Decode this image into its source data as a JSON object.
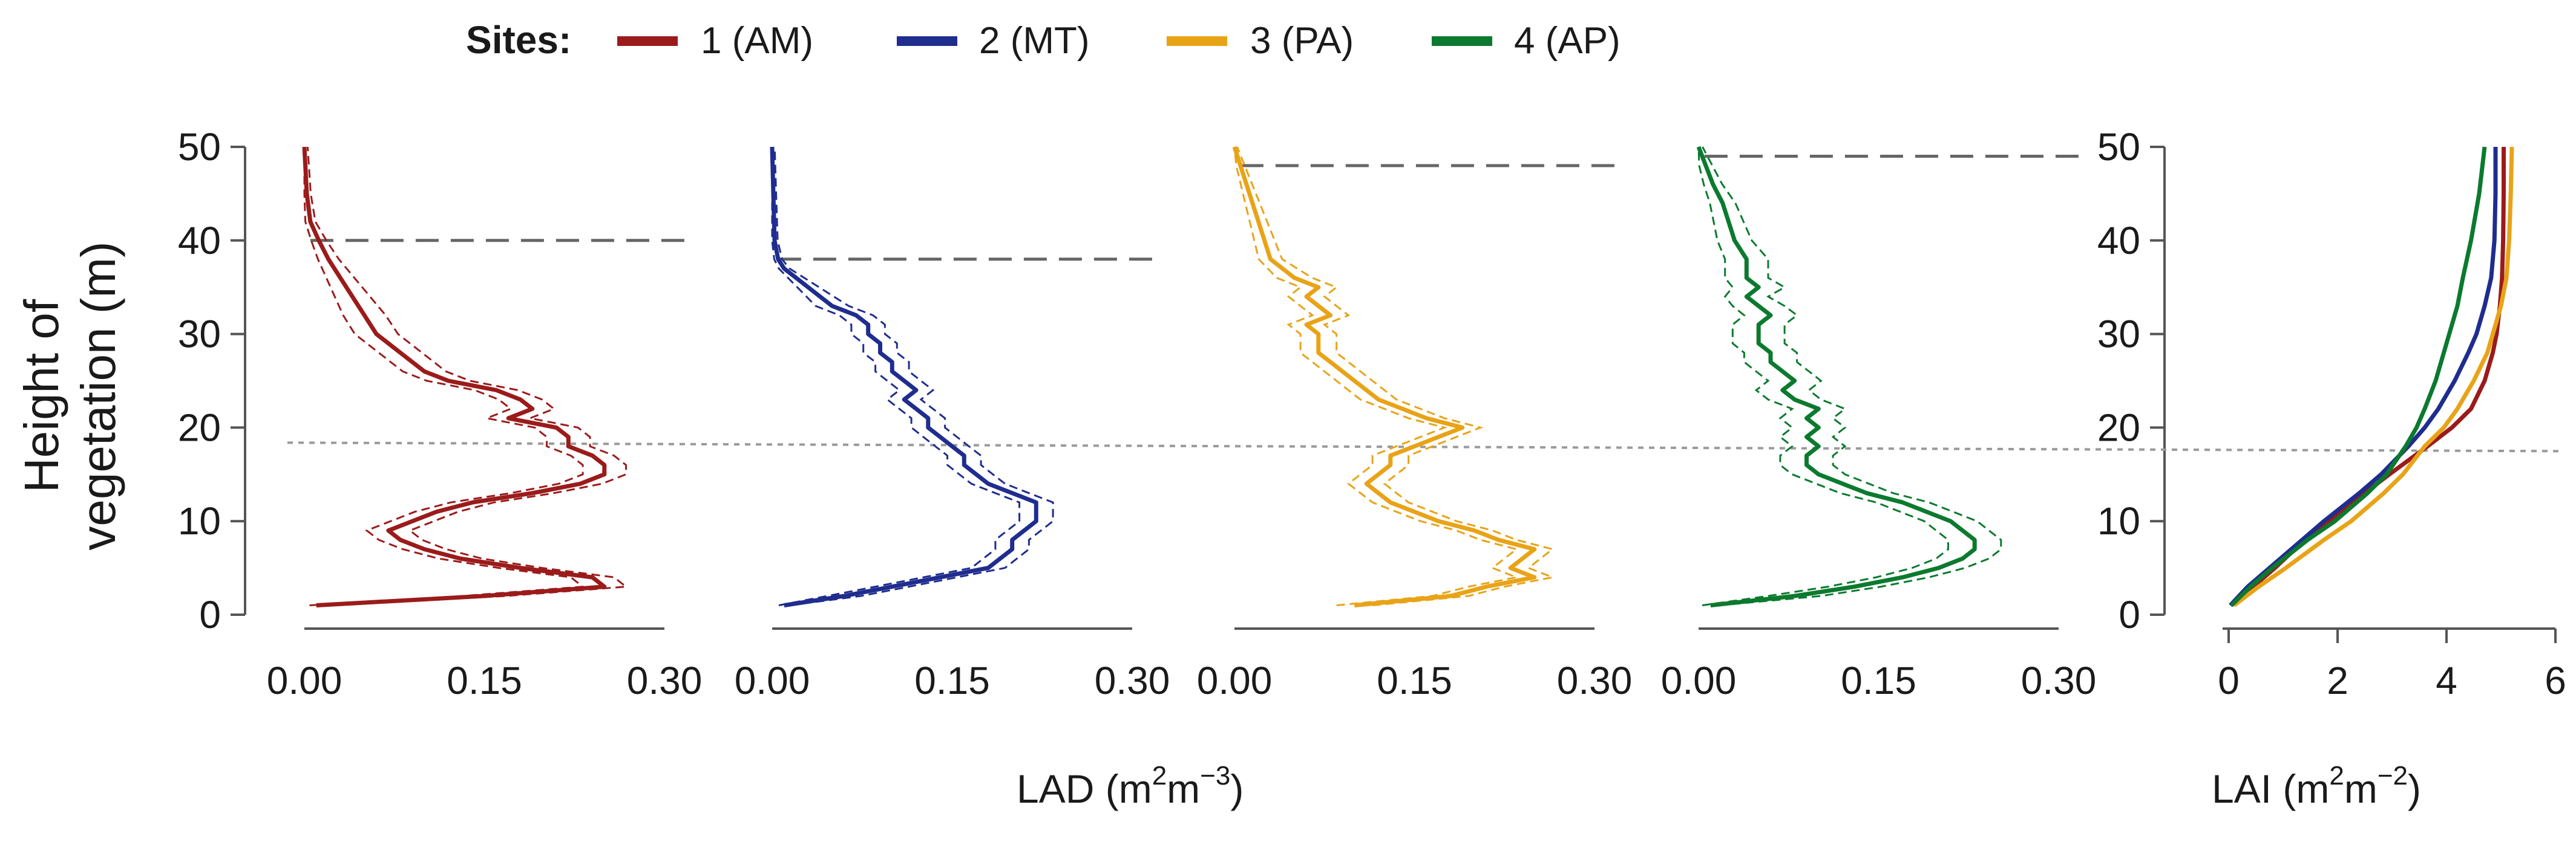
{
  "chart_data": {
    "type": "line",
    "legend": {
      "title": "Sites:",
      "placement": "top-left",
      "entries": [
        {
          "label": "1 (AM)",
          "color": "#9b1b1b"
        },
        {
          "label": "2 (MT)",
          "color": "#1f2d8f"
        },
        {
          "label": "3 (PA)",
          "color": "#e8a317"
        },
        {
          "label": "4 (AP)",
          "color": "#0b7a2e"
        }
      ]
    },
    "ylabel_line1": "Height of",
    "ylabel_line2": "vegetation (m)",
    "y_ticks": [
      "0",
      "10",
      "20",
      "30",
      "40",
      "50"
    ],
    "ylim": [
      0,
      50
    ],
    "lad_xlabel": {
      "base": "LAD (m",
      "sup1": "2",
      "mid": "m",
      "sup2": "−3",
      "end": ")"
    },
    "lai_xlabel": {
      "base": "LAI (m",
      "sup1": "2",
      "mid": "m",
      "sup2": "−2",
      "end": ")"
    },
    "lad_x_ticks": [
      "0.00",
      "0.15",
      "0.30"
    ],
    "lad_xlim": [
      0,
      0.3
    ],
    "lai_x_ticks": [
      "0",
      "2",
      "4",
      "6"
    ],
    "lai_xlim": [
      0,
      6
    ],
    "reference_height_dotted": 18,
    "lad_panels": [
      {
        "site": "1 (AM)",
        "color": "#9b1b1b",
        "canopy_height": 40,
        "ci_spread": 0.018,
        "h": [
          1,
          2,
          3,
          4,
          5,
          6,
          7,
          8,
          9,
          10,
          11,
          12,
          13,
          14,
          15,
          16,
          17,
          18,
          19,
          20,
          21,
          22,
          23,
          24,
          25,
          26,
          28,
          30,
          32,
          34,
          36,
          38,
          40,
          42,
          45,
          50
        ],
        "lad": [
          0.01,
          0.15,
          0.25,
          0.24,
          0.18,
          0.13,
          0.1,
          0.08,
          0.07,
          0.09,
          0.11,
          0.14,
          0.19,
          0.23,
          0.25,
          0.25,
          0.24,
          0.22,
          0.22,
          0.21,
          0.17,
          0.19,
          0.18,
          0.16,
          0.12,
          0.1,
          0.08,
          0.06,
          0.05,
          0.04,
          0.03,
          0.02,
          0.012,
          0.005,
          0.002,
          0.0
        ]
      },
      {
        "site": "2 (MT)",
        "color": "#1f2d8f",
        "canopy_height": 38,
        "ci_spread": 0.014,
        "h": [
          1,
          2,
          3,
          4,
          5,
          6,
          7,
          8,
          9,
          10,
          11,
          12,
          13,
          14,
          15,
          16,
          17,
          18,
          19,
          20,
          21,
          22,
          23,
          24,
          25,
          26,
          27,
          28,
          29,
          30,
          31,
          32,
          33,
          34,
          35,
          36,
          37,
          38,
          40,
          45,
          50
        ],
        "lad": [
          0.01,
          0.06,
          0.1,
          0.14,
          0.18,
          0.19,
          0.2,
          0.2,
          0.21,
          0.22,
          0.22,
          0.22,
          0.2,
          0.18,
          0.17,
          0.16,
          0.16,
          0.15,
          0.14,
          0.13,
          0.13,
          0.12,
          0.11,
          0.12,
          0.11,
          0.1,
          0.1,
          0.09,
          0.09,
          0.08,
          0.08,
          0.07,
          0.05,
          0.04,
          0.03,
          0.02,
          0.01,
          0.005,
          0.002,
          0.001,
          0.0
        ]
      },
      {
        "site": "3 (PA)",
        "color": "#e8a317",
        "canopy_height": 48,
        "ci_spread": 0.015,
        "h": [
          1,
          2,
          3,
          4,
          5,
          6,
          7,
          8,
          9,
          10,
          11,
          12,
          13,
          14,
          15,
          16,
          17,
          18,
          19,
          20,
          21,
          22,
          23,
          24,
          25,
          26,
          27,
          28,
          29,
          30,
          31,
          32,
          33,
          34,
          35,
          36,
          38,
          40,
          42,
          44,
          46,
          48,
          50
        ],
        "lad": [
          0.1,
          0.18,
          0.21,
          0.25,
          0.23,
          0.24,
          0.25,
          0.22,
          0.2,
          0.17,
          0.15,
          0.13,
          0.12,
          0.11,
          0.12,
          0.13,
          0.13,
          0.15,
          0.17,
          0.19,
          0.16,
          0.14,
          0.12,
          0.11,
          0.1,
          0.09,
          0.08,
          0.07,
          0.07,
          0.07,
          0.06,
          0.08,
          0.07,
          0.06,
          0.07,
          0.05,
          0.03,
          0.025,
          0.02,
          0.015,
          0.01,
          0.005,
          0.0
        ]
      },
      {
        "site": "4 (AP)",
        "color": "#0b7a2e",
        "canopy_height": 49,
        "ci_spread": 0.022,
        "h": [
          1,
          2,
          3,
          4,
          5,
          6,
          7,
          8,
          9,
          10,
          11,
          12,
          13,
          14,
          15,
          16,
          17,
          18,
          19,
          20,
          21,
          22,
          23,
          24,
          25,
          26,
          27,
          28,
          29,
          30,
          31,
          32,
          33,
          34,
          35,
          36,
          38,
          40,
          42,
          44,
          46,
          48,
          50
        ],
        "lad": [
          0.01,
          0.08,
          0.13,
          0.17,
          0.2,
          0.22,
          0.23,
          0.23,
          0.22,
          0.21,
          0.19,
          0.17,
          0.14,
          0.12,
          0.1,
          0.09,
          0.09,
          0.1,
          0.09,
          0.1,
          0.09,
          0.1,
          0.08,
          0.07,
          0.08,
          0.07,
          0.06,
          0.06,
          0.05,
          0.05,
          0.05,
          0.06,
          0.05,
          0.04,
          0.05,
          0.04,
          0.04,
          0.03,
          0.025,
          0.02,
          0.012,
          0.006,
          0.0
        ]
      }
    ],
    "lai_panel": {
      "series": [
        {
          "site": "1 (AM)",
          "color": "#9b1b1b",
          "h": [
            1,
            3,
            5,
            8,
            10,
            13,
            15,
            18,
            20,
            22,
            25,
            28,
            30,
            33,
            36,
            40,
            45,
            50
          ],
          "lai": [
            0.05,
            0.45,
            0.85,
            1.4,
            1.85,
            2.5,
            2.95,
            3.65,
            4.1,
            4.45,
            4.7,
            4.85,
            4.92,
            4.98,
            5.02,
            5.04,
            5.05,
            5.05
          ]
        },
        {
          "site": "2 (MT)",
          "color": "#1f2d8f",
          "h": [
            1,
            3,
            5,
            8,
            10,
            13,
            15,
            18,
            20,
            22,
            25,
            28,
            30,
            33,
            36,
            40,
            45,
            50
          ],
          "lai": [
            0.03,
            0.35,
            0.75,
            1.35,
            1.75,
            2.4,
            2.8,
            3.3,
            3.6,
            3.85,
            4.15,
            4.4,
            4.55,
            4.7,
            4.82,
            4.88,
            4.9,
            4.9
          ]
        },
        {
          "site": "3 (PA)",
          "color": "#e8a317",
          "h": [
            1,
            3,
            5,
            8,
            10,
            13,
            15,
            18,
            20,
            22,
            25,
            28,
            30,
            33,
            36,
            40,
            45,
            50
          ],
          "lai": [
            0.1,
            0.55,
            1.05,
            1.75,
            2.25,
            2.85,
            3.2,
            3.6,
            3.95,
            4.2,
            4.5,
            4.75,
            4.85,
            5.0,
            5.1,
            5.15,
            5.18,
            5.2
          ]
        },
        {
          "site": "4 (AP)",
          "color": "#0b7a2e",
          "h": [
            1,
            3,
            5,
            8,
            10,
            13,
            15,
            18,
            20,
            22,
            25,
            28,
            30,
            33,
            36,
            40,
            45,
            50
          ],
          "lai": [
            0.05,
            0.4,
            0.8,
            1.45,
            1.95,
            2.55,
            2.9,
            3.25,
            3.45,
            3.6,
            3.8,
            3.95,
            4.05,
            4.2,
            4.3,
            4.45,
            4.6,
            4.7
          ]
        }
      ]
    }
  }
}
